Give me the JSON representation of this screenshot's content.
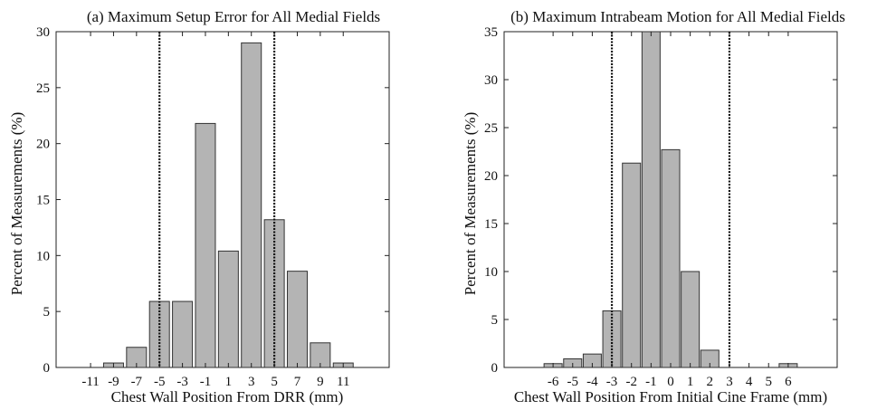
{
  "chart_data": [
    {
      "type": "bar",
      "title": "(a) Maximum Setup Error for All Medial Fields",
      "xlabel": "Chest Wall Position From DRR (mm)",
      "ylabel": "Percent of Measurements (%)",
      "xlim": [
        -14,
        15
      ],
      "ylim": [
        0,
        30
      ],
      "yticks": [
        0,
        5,
        10,
        15,
        20,
        25,
        30
      ],
      "xticks": [
        -11,
        -9,
        -7,
        -5,
        -3,
        -1,
        1,
        3,
        5,
        7,
        9,
        11
      ],
      "x": [
        -11,
        -9,
        -7,
        -5,
        -3,
        -1,
        1,
        3,
        5,
        7,
        9,
        11
      ],
      "values": [
        0,
        0.4,
        1.8,
        5.9,
        5.9,
        21.8,
        10.4,
        29.0,
        13.2,
        8.6,
        2.2,
        0.4
      ],
      "reference_lines": [
        -5,
        5
      ],
      "bar_color": "#b4b4b4"
    },
    {
      "type": "bar",
      "title": "(b) Maximum Intrabeam Motion for All Medial Fields",
      "xlabel": "Chest Wall Position From Initial Cine Frame (mm)",
      "ylabel": "Percent of Measurements (%)",
      "xlim": [
        -8.5,
        8.5
      ],
      "ylim": [
        0,
        35
      ],
      "yticks": [
        0,
        5,
        10,
        15,
        20,
        25,
        30,
        35
      ],
      "xticks": [
        -6,
        -5,
        -4,
        -3,
        -2,
        -1,
        0,
        1,
        2,
        3,
        4,
        5,
        6
      ],
      "x": [
        -6,
        -5,
        -4,
        -3,
        -2,
        -1,
        0,
        1,
        2,
        3,
        4,
        5,
        6
      ],
      "values": [
        0.4,
        0.9,
        1.4,
        5.9,
        21.3,
        35,
        22.7,
        10.0,
        1.8,
        0,
        0,
        0,
        0.4
      ],
      "reference_lines": [
        -3,
        3
      ],
      "bar_color": "#b4b4b4"
    }
  ]
}
